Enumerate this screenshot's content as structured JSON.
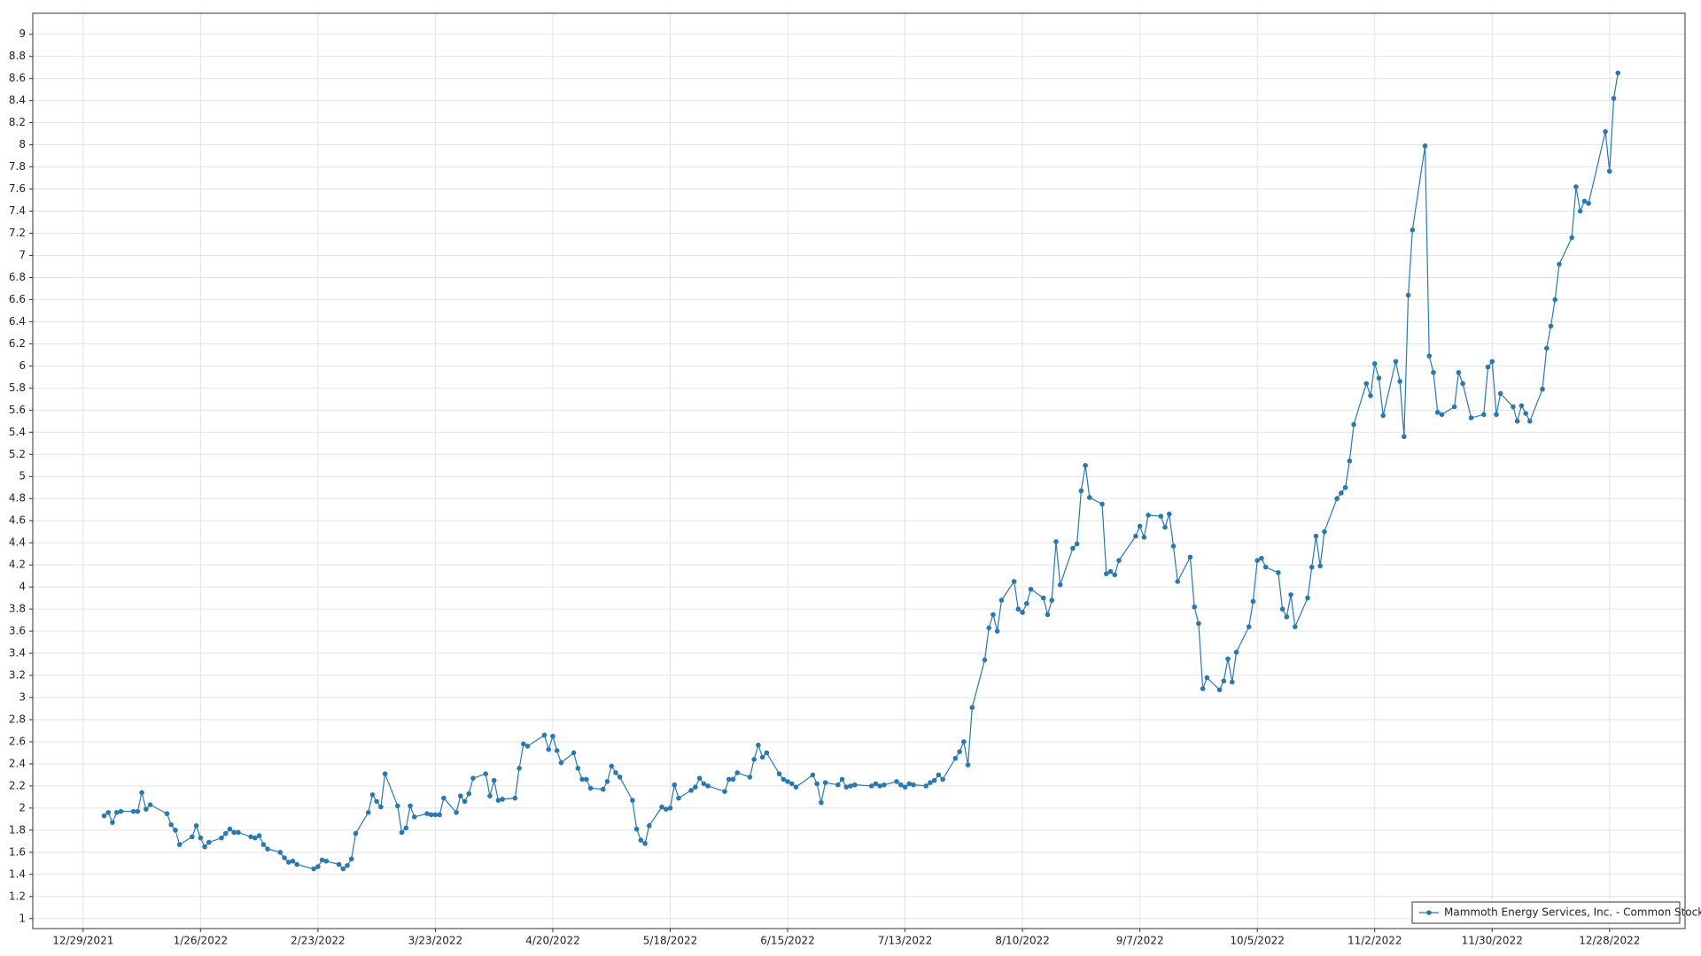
{
  "chart_data": {
    "type": "line",
    "x": [
      "1/3/2022",
      "1/4/2022",
      "1/5/2022",
      "1/6/2022",
      "1/7/2022",
      "1/10/2022",
      "1/11/2022",
      "1/12/2022",
      "1/13/2022",
      "1/14/2022",
      "1/18/2022",
      "1/19/2022",
      "1/20/2022",
      "1/21/2022",
      "1/24/2022",
      "1/25/2022",
      "1/26/2022",
      "1/27/2022",
      "1/28/2022",
      "1/31/2022",
      "2/1/2022",
      "2/2/2022",
      "2/3/2022",
      "2/4/2022",
      "2/7/2022",
      "2/8/2022",
      "2/9/2022",
      "2/10/2022",
      "2/11/2022",
      "2/14/2022",
      "2/15/2022",
      "2/16/2022",
      "2/17/2022",
      "2/18/2022",
      "2/22/2022",
      "2/23/2022",
      "2/24/2022",
      "2/25/2022",
      "2/28/2022",
      "3/1/2022",
      "3/2/2022",
      "3/3/2022",
      "3/4/2022",
      "3/7/2022",
      "3/8/2022",
      "3/9/2022",
      "3/10/2022",
      "3/11/2022",
      "3/14/2022",
      "3/15/2022",
      "3/16/2022",
      "3/17/2022",
      "3/18/2022",
      "3/21/2022",
      "3/22/2022",
      "3/23/2022",
      "3/24/2022",
      "3/25/2022",
      "3/28/2022",
      "3/29/2022",
      "3/30/2022",
      "3/31/2022",
      "4/1/2022",
      "4/4/2022",
      "4/5/2022",
      "4/6/2022",
      "4/7/2022",
      "4/8/2022",
      "4/11/2022",
      "4/12/2022",
      "4/13/2022",
      "4/14/2022",
      "4/18/2022",
      "4/19/2022",
      "4/20/2022",
      "4/21/2022",
      "4/22/2022",
      "4/25/2022",
      "4/26/2022",
      "4/27/2022",
      "4/28/2022",
      "4/29/2022",
      "5/2/2022",
      "5/3/2022",
      "5/4/2022",
      "5/5/2022",
      "5/6/2022",
      "5/9/2022",
      "5/10/2022",
      "5/11/2022",
      "5/12/2022",
      "5/13/2022",
      "5/16/2022",
      "5/17/2022",
      "5/18/2022",
      "5/19/2022",
      "5/20/2022",
      "5/23/2022",
      "5/24/2022",
      "5/25/2022",
      "5/26/2022",
      "5/27/2022",
      "5/31/2022",
      "6/1/2022",
      "6/2/2022",
      "6/3/2022",
      "6/6/2022",
      "6/7/2022",
      "6/8/2022",
      "6/9/2022",
      "6/10/2022",
      "6/13/2022",
      "6/14/2022",
      "6/15/2022",
      "6/16/2022",
      "6/17/2022",
      "6/21/2022",
      "6/22/2022",
      "6/23/2022",
      "6/24/2022",
      "6/27/2022",
      "6/28/2022",
      "6/29/2022",
      "6/30/2022",
      "7/1/2022",
      "7/5/2022",
      "7/6/2022",
      "7/7/2022",
      "7/8/2022",
      "7/11/2022",
      "7/12/2022",
      "7/13/2022",
      "7/14/2022",
      "7/15/2022",
      "7/18/2022",
      "7/19/2022",
      "7/20/2022",
      "7/21/2022",
      "7/22/2022",
      "7/25/2022",
      "7/26/2022",
      "7/27/2022",
      "7/28/2022",
      "7/29/2022",
      "8/1/2022",
      "8/2/2022",
      "8/3/2022",
      "8/4/2022",
      "8/5/2022",
      "8/8/2022",
      "8/9/2022",
      "8/10/2022",
      "8/11/2022",
      "8/12/2022",
      "8/15/2022",
      "8/16/2022",
      "8/17/2022",
      "8/18/2022",
      "8/19/2022",
      "8/22/2022",
      "8/23/2022",
      "8/24/2022",
      "8/25/2022",
      "8/26/2022",
      "8/29/2022",
      "8/30/2022",
      "8/31/2022",
      "9/1/2022",
      "9/2/2022",
      "9/6/2022",
      "9/7/2022",
      "9/8/2022",
      "9/9/2022",
      "9/12/2022",
      "9/13/2022",
      "9/14/2022",
      "9/15/2022",
      "9/16/2022",
      "9/19/2022",
      "9/20/2022",
      "9/21/2022",
      "9/22/2022",
      "9/23/2022",
      "9/26/2022",
      "9/27/2022",
      "9/28/2022",
      "9/29/2022",
      "9/30/2022",
      "10/3/2022",
      "10/4/2022",
      "10/5/2022",
      "10/6/2022",
      "10/7/2022",
      "10/10/2022",
      "10/11/2022",
      "10/12/2022",
      "10/13/2022",
      "10/14/2022",
      "10/17/2022",
      "10/18/2022",
      "10/19/2022",
      "10/20/2022",
      "10/21/2022",
      "10/24/2022",
      "10/25/2022",
      "10/26/2022",
      "10/27/2022",
      "10/28/2022",
      "10/31/2022",
      "11/1/2022",
      "11/2/2022",
      "11/3/2022",
      "11/4/2022",
      "11/7/2022",
      "11/8/2022",
      "11/9/2022",
      "11/10/2022",
      "11/11/2022",
      "11/14/2022",
      "11/15/2022",
      "11/16/2022",
      "11/17/2022",
      "11/18/2022",
      "11/21/2022",
      "11/22/2022",
      "11/23/2022",
      "11/25/2022",
      "11/28/2022",
      "11/29/2022",
      "11/30/2022",
      "12/1/2022",
      "12/2/2022",
      "12/5/2022",
      "12/6/2022",
      "12/7/2022",
      "12/8/2022",
      "12/9/2022",
      "12/12/2022",
      "12/13/2022",
      "12/14/2022",
      "12/15/2022",
      "12/16/2022",
      "12/19/2022",
      "12/20/2022",
      "12/21/2022",
      "12/22/2022",
      "12/23/2022",
      "12/27/2022",
      "12/28/2022",
      "12/29/2022",
      "12/30/2022"
    ],
    "series": [
      {
        "name": "Mammoth Energy Services, Inc. - Common Stock",
        "color": "#2a78b0",
        "values": [
          1.93,
          1.96,
          1.87,
          1.96,
          1.97,
          1.97,
          1.97,
          2.14,
          1.99,
          2.03,
          1.95,
          1.85,
          1.8,
          1.67,
          1.74,
          1.84,
          1.73,
          1.65,
          1.69,
          1.73,
          1.77,
          1.81,
          1.78,
          1.78,
          1.74,
          1.73,
          1.75,
          1.67,
          1.63,
          1.6,
          1.55,
          1.51,
          1.52,
          1.49,
          1.45,
          1.47,
          1.53,
          1.52,
          1.49,
          1.45,
          1.48,
          1.54,
          1.77,
          1.96,
          2.12,
          2.06,
          2.01,
          2.31,
          2.02,
          1.78,
          1.82,
          2.02,
          1.92,
          1.95,
          1.94,
          1.94,
          1.94,
          2.09,
          1.96,
          2.11,
          2.06,
          2.13,
          2.27,
          2.31,
          2.11,
          2.25,
          2.07,
          2.08,
          2.09,
          2.36,
          2.58,
          2.56,
          2.66,
          2.53,
          2.65,
          2.52,
          2.41,
          2.5,
          2.36,
          2.26,
          2.26,
          2.18,
          2.17,
          2.24,
          2.38,
          2.32,
          2.28,
          2.07,
          1.81,
          1.71,
          1.68,
          1.84,
          2.01,
          1.99,
          2.0,
          2.21,
          2.09,
          2.16,
          2.19,
          2.27,
          2.22,
          2.2,
          2.15,
          2.26,
          2.26,
          2.32,
          2.28,
          2.44,
          2.57,
          2.46,
          2.5,
          2.31,
          2.26,
          2.24,
          2.22,
          2.19,
          2.3,
          2.22,
          2.05,
          2.23,
          2.21,
          2.26,
          2.19,
          2.2,
          2.21,
          2.2,
          2.22,
          2.2,
          2.21,
          2.24,
          2.21,
          2.19,
          2.22,
          2.21,
          2.2,
          2.23,
          2.25,
          2.3,
          2.26,
          2.45,
          2.51,
          2.6,
          2.39,
          2.91,
          3.34,
          3.63,
          3.75,
          3.6,
          3.88,
          4.05,
          3.8,
          3.77,
          3.85,
          3.98,
          3.9,
          3.75,
          3.88,
          4.41,
          4.02,
          4.35,
          4.39,
          4.87,
          5.1,
          4.81,
          4.75,
          4.12,
          4.14,
          4.11,
          4.24,
          4.46,
          4.55,
          4.45,
          4.65,
          4.64,
          4.54,
          4.66,
          4.37,
          4.05,
          4.27,
          3.82,
          3.67,
          3.08,
          3.18,
          3.07,
          3.15,
          3.35,
          3.14,
          3.41,
          3.64,
          3.87,
          4.24,
          4.26,
          4.18,
          4.13,
          3.8,
          3.73,
          3.93,
          3.64,
          3.9,
          4.18,
          4.46,
          4.19,
          4.5,
          4.8,
          4.85,
          4.9,
          5.14,
          5.47,
          5.84,
          5.73,
          6.02,
          5.89,
          5.55,
          6.04,
          5.86,
          5.36,
          6.64,
          7.23,
          7.99,
          6.09,
          5.94,
          5.58,
          5.56,
          5.63,
          5.94,
          5.84,
          5.53,
          5.56,
          5.99,
          6.04,
          5.56,
          5.75,
          5.63,
          5.5,
          5.64,
          5.57,
          5.5,
          5.79,
          6.16,
          6.36,
          6.6,
          6.92,
          7.16,
          7.62,
          7.4,
          7.49,
          7.47,
          8.12,
          7.76,
          8.42,
          8.65
        ]
      }
    ],
    "xlim": [
      "12/17/2021",
      "1/15/2023"
    ],
    "xticks": [
      "12/29/2021",
      "1/26/2022",
      "2/23/2022",
      "3/23/2022",
      "4/20/2022",
      "5/18/2022",
      "6/15/2022",
      "7/13/2022",
      "8/10/2022",
      "9/7/2022",
      "10/5/2022",
      "11/2/2022",
      "11/30/2022",
      "12/28/2022"
    ],
    "ylim": [
      0.91,
      9.19
    ],
    "yticks": [
      1,
      1.2,
      1.4,
      1.6,
      1.8,
      2,
      2.2,
      2.4,
      2.6,
      2.8,
      3,
      3.2,
      3.4,
      3.6,
      3.8,
      4,
      4.2,
      4.4,
      4.6,
      4.8,
      5,
      5.2,
      5.4,
      5.6,
      5.8,
      6,
      6.2,
      6.4,
      6.6,
      6.8,
      7,
      7.2,
      7.4,
      7.6,
      7.8,
      8,
      8.2,
      8.4,
      8.6,
      8.8,
      9
    ],
    "grid": true,
    "legend": "lower right"
  }
}
